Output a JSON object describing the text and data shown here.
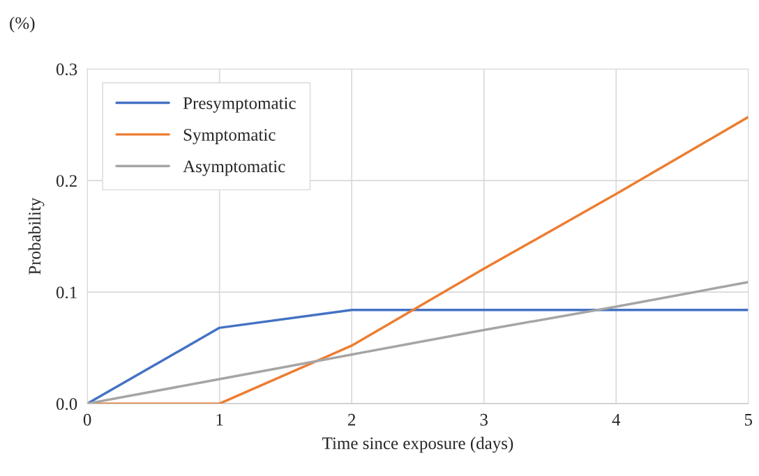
{
  "chart_data": {
    "type": "line",
    "xlabel": "Time since exposure (days)",
    "ylabel": "Probability",
    "annotations": [
      "(%)"
    ],
    "x": [
      0,
      1,
      2,
      3,
      4,
      5
    ],
    "series": [
      {
        "name": "Presymptomatic",
        "color": "#4472c4",
        "values": [
          0,
          0.068,
          0.084,
          0.084,
          0.084,
          0.084
        ]
      },
      {
        "name": "Symptomatic",
        "color": "#ed7d31",
        "values": [
          0,
          0,
          0.052,
          0.121,
          0.188,
          0.257
        ]
      },
      {
        "name": "Asymptomatic",
        "color": "#a5a5a5",
        "values": [
          0,
          0.022,
          0.044,
          0.066,
          0.087,
          0.109
        ]
      }
    ],
    "xlim": [
      0,
      5
    ],
    "xticks": [
      0,
      1,
      2,
      3,
      4,
      5
    ],
    "ylim": [
      0,
      0.3
    ],
    "yticks": [
      {
        "value": 0,
        "label": "0.0"
      },
      0.1,
      0.2,
      0.3
    ],
    "grid": true,
    "legend": "top left",
    "marker": "none",
    "line_style": "solid"
  }
}
